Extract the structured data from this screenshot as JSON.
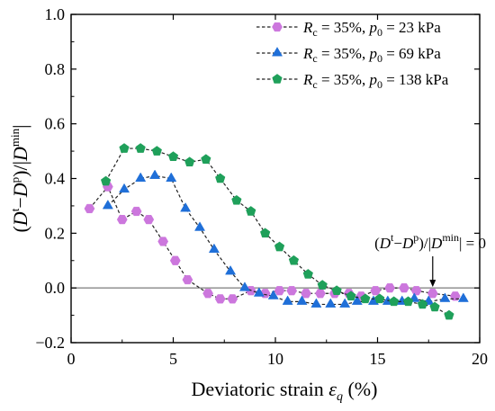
{
  "chart_data": {
    "type": "scatter",
    "xlabel_main": "Deviatoric strain ",
    "xlabel_symbol": "ε",
    "xlabel_sub": "q",
    "xlabel_unit": " (%)",
    "ylabel_parts": [
      "(",
      "D",
      "t",
      "−",
      "D",
      "p",
      ")/|",
      "D",
      "min",
      "|"
    ],
    "xlim": [
      0,
      20
    ],
    "ylim": [
      -0.2,
      1.0
    ],
    "xticks": [
      0,
      5,
      10,
      15,
      20
    ],
    "yticks": [
      -0.2,
      0.0,
      0.2,
      0.4,
      0.6,
      0.8,
      1.0
    ],
    "xtick_labels": [
      "0",
      "5",
      "10",
      "15",
      "20"
    ],
    "ytick_labels": [
      "−0.2",
      "0.0",
      "0.2",
      "0.4",
      "0.6",
      "0.8",
      "1.0"
    ],
    "reference_line_y": 0,
    "annotation": {
      "parts": [
        "(",
        "D",
        "t",
        "−",
        "D",
        "p",
        ")/|",
        "D",
        "min",
        "| = 0"
      ],
      "arrow_x": 17.7
    },
    "legend_placement": "top-right",
    "series": [
      {
        "name": "Rc = 35%, p0 = 23 kPa",
        "legend_parts": [
          "R",
          "c",
          " = 35%, ",
          "p",
          "0",
          " = 23 kPa"
        ],
        "color": "#cc77dd",
        "marker": "hexagon",
        "x": [
          0.9,
          1.8,
          2.5,
          3.2,
          3.8,
          4.5,
          5.1,
          5.7,
          6.7,
          7.3,
          7.9,
          8.8,
          9.5,
          10.2,
          10.8,
          11.5,
          12.2,
          12.9,
          13.6,
          14.2,
          14.9,
          15.6,
          16.3,
          16.9,
          17.7,
          18.8
        ],
        "y": [
          0.29,
          0.37,
          0.25,
          0.28,
          0.25,
          0.17,
          0.1,
          0.03,
          -0.02,
          -0.04,
          -0.04,
          -0.01,
          -0.02,
          -0.01,
          -0.01,
          -0.02,
          -0.02,
          -0.02,
          -0.02,
          -0.03,
          -0.01,
          0.0,
          0.0,
          -0.01,
          -0.02,
          -0.03
        ]
      },
      {
        "name": "Rc = 35%, p0 = 69 kPa",
        "legend_parts": [
          "R",
          "c",
          " = 35%, ",
          "p",
          "0",
          " = 69 kPa"
        ],
        "color": "#1f6fd8",
        "marker": "triangle",
        "x": [
          1.8,
          2.6,
          3.4,
          4.1,
          4.9,
          5.6,
          6.3,
          7.0,
          7.8,
          8.5,
          9.2,
          9.9,
          10.6,
          11.3,
          12.0,
          12.7,
          13.4,
          14.0,
          14.8,
          15.5,
          16.2,
          16.8,
          17.5,
          18.3,
          19.2
        ],
        "y": [
          0.3,
          0.36,
          0.4,
          0.41,
          0.4,
          0.29,
          0.22,
          0.14,
          0.06,
          0.0,
          -0.02,
          -0.03,
          -0.05,
          -0.05,
          -0.06,
          -0.06,
          -0.06,
          -0.05,
          -0.05,
          -0.05,
          -0.05,
          -0.04,
          -0.05,
          -0.04,
          -0.04
        ]
      },
      {
        "name": "Rc = 35%, p0 = 138 kPa",
        "legend_parts": [
          "R",
          "c",
          " = 35%, ",
          "p",
          "0",
          " = 138 kPa"
        ],
        "color": "#1fa05a",
        "marker": "pentagon",
        "x": [
          1.7,
          2.6,
          3.4,
          4.2,
          5.0,
          5.8,
          6.6,
          7.3,
          8.1,
          8.8,
          9.5,
          10.2,
          10.9,
          11.6,
          12.3,
          13.0,
          13.7,
          14.4,
          15.1,
          15.8,
          16.5,
          17.2,
          17.8,
          18.5
        ],
        "y": [
          0.39,
          0.51,
          0.51,
          0.5,
          0.48,
          0.46,
          0.47,
          0.4,
          0.32,
          0.28,
          0.2,
          0.15,
          0.1,
          0.05,
          0.01,
          -0.01,
          -0.03,
          -0.04,
          -0.04,
          -0.05,
          -0.05,
          -0.06,
          -0.07,
          -0.1
        ]
      }
    ]
  }
}
